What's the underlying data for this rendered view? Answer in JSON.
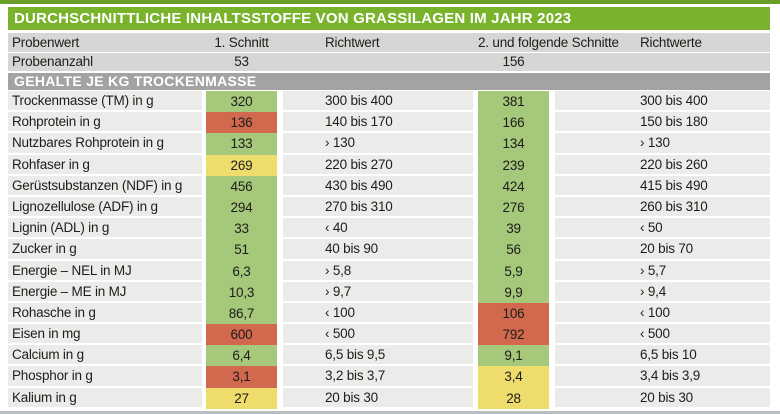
{
  "title": "DURCHSCHNITTLICHE INHALTSSTOFFE VON GRASSILAGEN IM JAHR 2023",
  "section_header": "GEHALTE JE KG TROCKENMASSE",
  "colors": {
    "title_green": "#79b32c",
    "top_strip_green": "#6a9e28",
    "head_gray": "#d6d6d4",
    "section_gray": "#a3a3a2",
    "row_gray": "#ebebe9",
    "green": "#a5c87a",
    "red": "#d2694e",
    "yellow": "#eedc6d",
    "bottom_strip_gray": "#b9bec1",
    "text": "#1d1d1b"
  },
  "chart_data": {
    "type": "table",
    "title": "DURCHSCHNITTLICHE INHALTSSTOFFE VON GRASSILAGEN IM JAHR 2023",
    "section": "GEHALTE JE KG TROCKENMASSE",
    "columns": [
      "Probenwert",
      "1. Schnitt",
      "Richtwert",
      "2. und folgende Schnitte",
      "Richtwerte"
    ],
    "sample_counts": {
      "label": "Probenanzahl",
      "schnitt_1": "53",
      "schnitt_2_plus": "156"
    },
    "status_colors": {
      "green": "#a5c87a",
      "red": "#d2694e",
      "yellow": "#eedc6d"
    },
    "rows": [
      {
        "label": "Trockenmasse (TM) in g",
        "v1": "320",
        "s1": "green",
        "r1": "300 bis 400",
        "v2": "381",
        "s2": "green",
        "r2": "300 bis 400"
      },
      {
        "label": "Rohprotein in g",
        "v1": "136",
        "s1": "red",
        "r1": "140 bis 170",
        "v2": "166",
        "s2": "green",
        "r2": "150 bis 180"
      },
      {
        "label": "Nutzbares Rohprotein in g",
        "v1": "133",
        "s1": "green",
        "r1": "› 130",
        "v2": "134",
        "s2": "green",
        "r2": "› 130"
      },
      {
        "label": "Rohfaser in g",
        "v1": "269",
        "s1": "yellow",
        "r1": "220 bis 270",
        "v2": "239",
        "s2": "green",
        "r2": "220 bis 260"
      },
      {
        "label": "Gerüstsubstanzen (NDF) in g",
        "v1": "456",
        "s1": "green",
        "r1": "430 bis 490",
        "v2": "424",
        "s2": "green",
        "r2": "415 bis 490"
      },
      {
        "label": "Lignozellulose (ADF) in g",
        "v1": "294",
        "s1": "green",
        "r1": "270 bis 310",
        "v2": "276",
        "s2": "green",
        "r2": "260 bis 310"
      },
      {
        "label": "Lignin (ADL) in g",
        "v1": "33",
        "s1": "green",
        "r1": "‹ 40",
        "v2": "39",
        "s2": "green",
        "r2": "‹ 50"
      },
      {
        "label": "Zucker in g",
        "v1": "51",
        "s1": "green",
        "r1": "40 bis 90",
        "v2": "56",
        "s2": "green",
        "r2": "20 bis 70"
      },
      {
        "label": "Energie – NEL in MJ",
        "v1": "6,3",
        "s1": "green",
        "r1": "› 5,8",
        "v2": "5,9",
        "s2": "green",
        "r2": "› 5,7"
      },
      {
        "label": "Energie – ME in MJ",
        "v1": "10,3",
        "s1": "green",
        "r1": "› 9,7",
        "v2": "9,9",
        "s2": "green",
        "r2": "› 9,4"
      },
      {
        "label": "Rohasche in g",
        "v1": "86,7",
        "s1": "green",
        "r1": "‹ 100",
        "v2": "106",
        "s2": "red",
        "r2": "‹ 100"
      },
      {
        "label": "Eisen in mg",
        "v1": "600",
        "s1": "red",
        "r1": "‹ 500",
        "v2": "792",
        "s2": "red",
        "r2": "‹ 500"
      },
      {
        "label": "Calcium in g",
        "v1": "6,4",
        "s1": "green",
        "r1": "6,5 bis 9,5",
        "v2": "9,1",
        "s2": "green",
        "r2": "6,5 bis 10"
      },
      {
        "label": "Phosphor in g",
        "v1": "3,1",
        "s1": "red",
        "r1": "3,2 bis 3,7",
        "v2": "3,4",
        "s2": "yellow",
        "r2": "3,4 bis 3,9"
      },
      {
        "label": "Kalium in g",
        "v1": "27",
        "s1": "yellow",
        "r1": "20 bis 30",
        "v2": "28",
        "s2": "yellow",
        "r2": "20 bis 30"
      }
    ]
  }
}
